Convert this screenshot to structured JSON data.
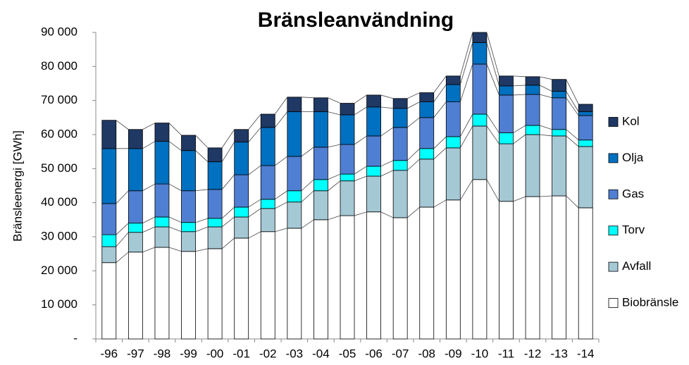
{
  "chart_data": {
    "type": "stacked_bar",
    "title": "Bränsleanvändning",
    "y_label": "Bränsleenergi [GWh]",
    "categories": [
      "-96",
      "-97",
      "-98",
      "-99",
      "-00",
      "-01",
      "-02",
      "-03",
      "-04",
      "-05",
      "-06",
      "-07",
      "-08",
      "-09",
      "-10",
      "-11",
      "-12",
      "-13",
      "-14"
    ],
    "series": [
      {
        "name": "Biobränsle",
        "color": "#ffffff",
        "values": [
          22400,
          25500,
          26900,
          25700,
          26500,
          29600,
          31500,
          32500,
          35000,
          36200,
          37300,
          35600,
          38700,
          40800,
          46800,
          40400,
          41800,
          42000,
          38500
        ]
      },
      {
        "name": "Avfall",
        "color": "#a5c8d5",
        "values": [
          4700,
          5800,
          6000,
          5800,
          6400,
          6200,
          6800,
          7700,
          8500,
          10200,
          10500,
          13900,
          14100,
          15300,
          15700,
          16900,
          18200,
          17600,
          18000
        ]
      },
      {
        "name": "Torv",
        "color": "#00ffff",
        "values": [
          3500,
          2700,
          2900,
          2700,
          2500,
          2900,
          2700,
          3300,
          3300,
          2000,
          2900,
          2900,
          3100,
          3300,
          3500,
          3200,
          2700,
          1900,
          1900
        ]
      },
      {
        "name": "Gas",
        "color": "#4f7fd2",
        "values": [
          9150,
          9500,
          9700,
          9300,
          8500,
          9500,
          9900,
          10100,
          9500,
          8700,
          8900,
          9700,
          9100,
          10200,
          14700,
          11100,
          9100,
          9300,
          7200
        ]
      },
      {
        "name": "Olja",
        "color": "#0070c0",
        "values": [
          16150,
          12400,
          12500,
          11800,
          8100,
          9600,
          11200,
          13100,
          10400,
          8700,
          8500,
          5600,
          4600,
          5100,
          6300,
          2700,
          2700,
          1900,
          1100
        ]
      },
      {
        "name": "Kol",
        "color": "#1f3864",
        "values": [
          8300,
          5600,
          5400,
          4500,
          4100,
          3700,
          3900,
          4300,
          4100,
          3400,
          3500,
          2900,
          2700,
          2500,
          3000,
          2900,
          2500,
          3500,
          2200
        ]
      }
    ],
    "ylim": [
      0,
      90000
    ],
    "yticks": [
      {
        "value": 0,
        "label": "-"
      },
      {
        "value": 10000,
        "label": "10 000"
      },
      {
        "value": 20000,
        "label": "20 000"
      },
      {
        "value": 30000,
        "label": "30 000"
      },
      {
        "value": 40000,
        "label": "40 000"
      },
      {
        "value": 50000,
        "label": "50 000"
      },
      {
        "value": 60000,
        "label": "60 000"
      },
      {
        "value": 70000,
        "label": "70 000"
      },
      {
        "value": 80000,
        "label": "80 000"
      },
      {
        "value": 90000,
        "label": "90 000"
      }
    ],
    "legend": "right"
  }
}
